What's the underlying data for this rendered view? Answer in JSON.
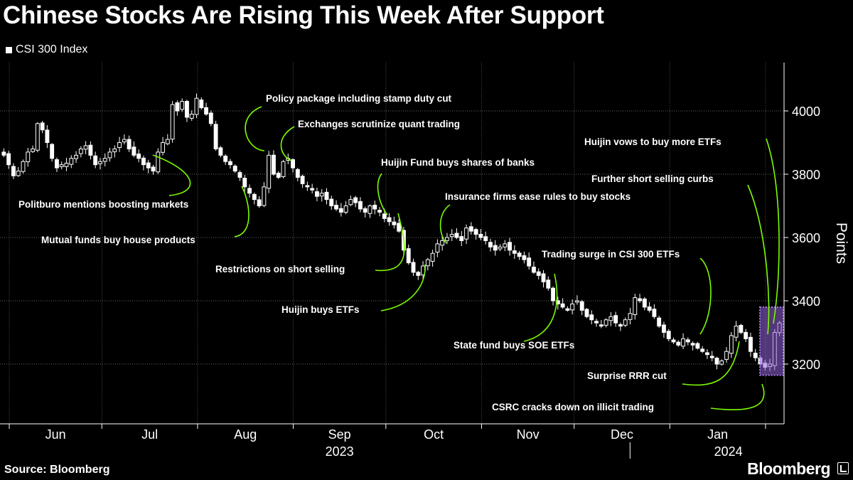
{
  "header": {
    "title": "Chinese Stocks Are Rising This Week After Support",
    "legend": "CSI 300 Index"
  },
  "footer": {
    "source": "Source: Bloomberg",
    "brand": "Bloomberg"
  },
  "colors": {
    "background": "#000000",
    "candle": "#ffffff",
    "connector": "#7cfc00",
    "highlight": "#a878e8"
  },
  "chart_data": {
    "type": "candlestick",
    "title": "Chinese Stocks Are Rising This Week After Support",
    "ylabel": "Points",
    "ylim": [
      3035,
      4200
    ],
    "yticks": [
      3200,
      3400,
      3600,
      3800,
      4000
    ],
    "y_axis_side": "right",
    "grid": "horizontal dotted",
    "months": [
      "Jun",
      "Jul",
      "Aug",
      "Sep",
      "Oct",
      "Nov",
      "Dec",
      "Jan"
    ],
    "years": [
      "2023",
      "2024"
    ],
    "x_range": [
      "2023-05-29",
      "2024-02-07"
    ],
    "highlight": {
      "x": [
        "2024-02-05",
        "2024-02-07"
      ],
      "y": [
        3165,
        3380
      ]
    },
    "closes": [
      3860,
      3830,
      3795,
      3810,
      3840,
      3870,
      3880,
      3960,
      3940,
      3900,
      3850,
      3820,
      3830,
      3835,
      3850,
      3860,
      3880,
      3890,
      3860,
      3830,
      3840,
      3850,
      3870,
      3880,
      3900,
      3910,
      3880,
      3860,
      3850,
      3830,
      3820,
      3810,
      3870,
      3900,
      3910,
      4020,
      4000,
      4030,
      3980,
      3990,
      4040,
      4010,
      3990,
      3960,
      3880,
      3860,
      3840,
      3830,
      3810,
      3790,
      3760,
      3740,
      3720,
      3700,
      3760,
      3860,
      3800,
      3790,
      3840,
      3850,
      3820,
      3790,
      3770,
      3760,
      3750,
      3730,
      3740,
      3720,
      3700,
      3690,
      3680,
      3700,
      3720,
      3710,
      3690,
      3680,
      3700,
      3690,
      3680,
      3660,
      3650,
      3640,
      3620,
      3560,
      3520,
      3490,
      3480,
      3510,
      3530,
      3550,
      3580,
      3590,
      3600,
      3610,
      3600,
      3590,
      3630,
      3620,
      3610,
      3600,
      3590,
      3570,
      3560,
      3570,
      3580,
      3560,
      3550,
      3540,
      3530,
      3510,
      3490,
      3480,
      3460,
      3440,
      3400,
      3390,
      3380,
      3370,
      3390,
      3400,
      3370,
      3350,
      3340,
      3330,
      3320,
      3340,
      3350,
      3330,
      3320,
      3340,
      3360,
      3410,
      3400,
      3380,
      3370,
      3350,
      3320,
      3300,
      3280,
      3270,
      3260,
      3280,
      3270,
      3260,
      3250,
      3240,
      3230,
      3220,
      3200,
      3210,
      3240,
      3290,
      3320,
      3300,
      3280,
      3240,
      3220,
      3200,
      3190,
      3200,
      3300,
      3330
    ],
    "events": [
      {
        "label": "Politburo mentions boosting markets",
        "date": "2023-07-25"
      },
      {
        "label": "Mutual funds buy house products",
        "date": "2023-08-18"
      },
      {
        "label": "Policy package including stamp duty cut",
        "date": "2023-08-28"
      },
      {
        "label": "Exchanges scrutinize quant trading",
        "date": "2023-09-01"
      },
      {
        "label": "Restrictions on short selling",
        "date": "2023-10-16"
      },
      {
        "label": "Huijin Fund buys shares of banks",
        "date": "2023-10-11"
      },
      {
        "label": "Huijin buys ETFs",
        "date": "2023-10-23"
      },
      {
        "label": "Insurance firms ease rules to buy stocks",
        "date": "2023-10-31"
      },
      {
        "label": "Trading surge in CSI 300 ETFs",
        "date": "2024-01-10"
      },
      {
        "label": "State fund buys SOE ETFs",
        "date": "2023-11-30"
      },
      {
        "label": "Surprise RRR cut",
        "date": "2024-01-24"
      },
      {
        "label": "CSRC cracks down on illicit trading",
        "date": "2024-02-05"
      },
      {
        "label": "Further short selling curbs",
        "date": "2024-02-05"
      },
      {
        "label": "Huijin vows to buy more ETFs",
        "date": "2024-02-06"
      }
    ]
  }
}
